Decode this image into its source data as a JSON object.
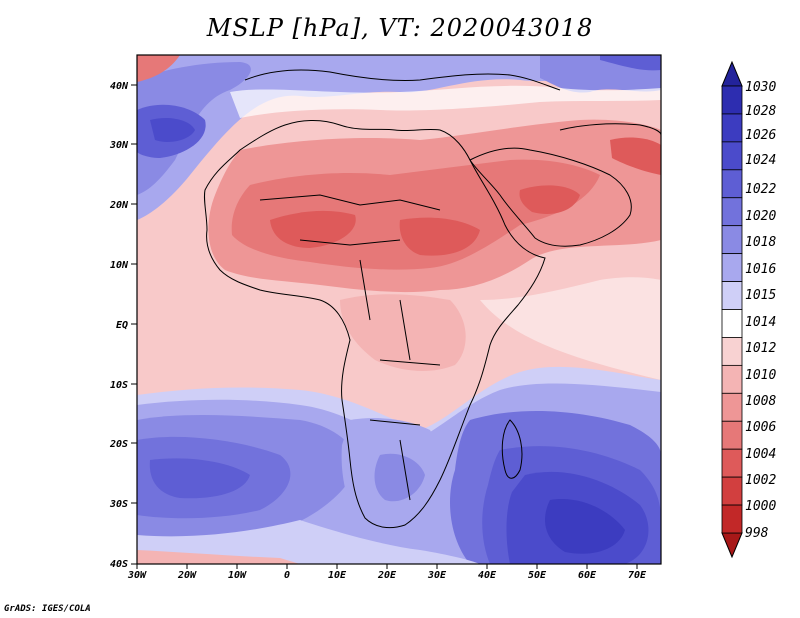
{
  "title": "MSLP [hPa], VT: 2020043018",
  "footer": "GrADS: IGES/COLA",
  "map": {
    "lat_ticks": [
      "40N",
      "30N",
      "20N",
      "10N",
      "EQ",
      "10S",
      "20S",
      "30S",
      "40S"
    ],
    "lon_ticks": [
      "30W",
      "20W",
      "10W",
      "0",
      "10E",
      "20E",
      "30E",
      "40E",
      "50E",
      "60E",
      "70E"
    ]
  },
  "colorbar": {
    "levels": [
      "1030",
      "1028",
      "1026",
      "1024",
      "1022",
      "1020",
      "1018",
      "1016",
      "1015",
      "1014",
      "1012",
      "1010",
      "1008",
      "1006",
      "1004",
      "1002",
      "1000",
      "998"
    ],
    "colors": [
      "#23239b",
      "#2d2db0",
      "#3c3cc0",
      "#4b4bcb",
      "#5e5ed4",
      "#7272dc",
      "#8a8ae4",
      "#a8a8ee",
      "#cfcff7",
      "#ffffff",
      "#f8d2d2",
      "#f4b4b4",
      "#ee9696",
      "#e67878",
      "#de5a5a",
      "#d23f3f",
      "#c22828",
      "#a81818"
    ]
  }
}
